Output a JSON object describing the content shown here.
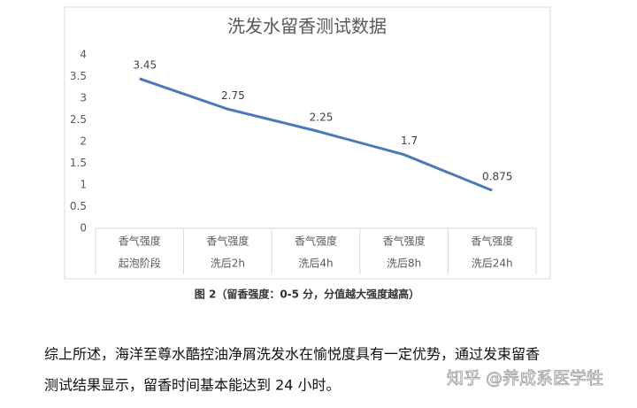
{
  "chart_data": {
    "type": "line",
    "title": "洗发水留香测试数据",
    "categories": [
      [
        "香气强度",
        "起泡阶段"
      ],
      [
        "香气强度",
        "洗后2h"
      ],
      [
        "香气强度",
        "洗后4h"
      ],
      [
        "香气强度",
        "洗后8h"
      ],
      [
        "香气强度",
        "洗后24h"
      ]
    ],
    "values": [
      3.45,
      2.75,
      2.25,
      1.7,
      0.875
    ],
    "color": "#4a7ab8",
    "ylim": [
      0,
      4
    ],
    "yticks": [
      0,
      0.5,
      1,
      1.5,
      2,
      2.5,
      3,
      3.5,
      4
    ],
    "grid": false
  },
  "caption": "图 2（留香强度：0-5 分，分值越大强度越高）",
  "paragraph": [
    "综上所述，海洋至尊水酷控油净屑洗发水在愉悦度具有一定优势，通过发束留香",
    "测试结果显示，留香时间基本能达到  24  小时。"
  ],
  "watermark": "知乎 @养成系医学牲"
}
